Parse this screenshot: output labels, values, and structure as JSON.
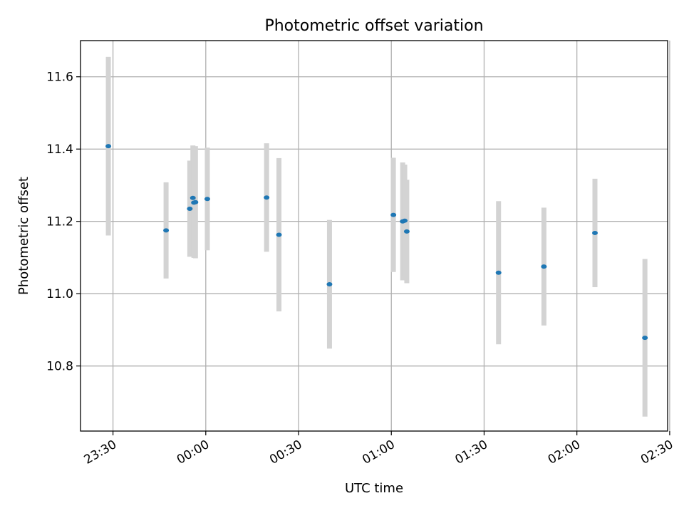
{
  "chart_data": {
    "type": "scatter",
    "title": "Photometric offset variation",
    "xlabel": "UTC time",
    "ylabel": "Photometric offset",
    "xlim": [
      "23:19:30",
      "02:29:20"
    ],
    "ylim": [
      10.62,
      11.7
    ],
    "x_ticks": [
      "23:30",
      "00:00",
      "00:30",
      "01:00",
      "01:30",
      "02:00",
      "02:30"
    ],
    "y_ticks": [
      10.8,
      11.0,
      11.2,
      11.4,
      11.6
    ],
    "y_tick_labels": [
      "10.8",
      "11.0",
      "11.2",
      "11.4",
      "11.6"
    ],
    "grid": true,
    "point_color": "#1f77b4",
    "errorbar_color": "#d3d3d3",
    "series": [
      {
        "points": [
          {
            "x": "23:28:30",
            "y": 11.408,
            "err": 0.247
          },
          {
            "x": "23:47:10",
            "y": 11.175,
            "err": 0.133
          },
          {
            "x": "23:54:50",
            "y": 11.235,
            "err": 0.133
          },
          {
            "x": "23:55:50",
            "y": 11.265,
            "err": 0.145
          },
          {
            "x": "23:56:10",
            "y": 11.252,
            "err": 0.153
          },
          {
            "x": "23:56:40",
            "y": 11.253,
            "err": 0.155
          },
          {
            "x": "00:00:30",
            "y": 11.262,
            "err": 0.142
          },
          {
            "x": "00:19:40",
            "y": 11.266,
            "err": 0.15
          },
          {
            "x": "00:23:40",
            "y": 11.163,
            "err": 0.212
          },
          {
            "x": "00:40:00",
            "y": 11.026,
            "err": 0.178
          },
          {
            "x": "01:00:40",
            "y": 11.218,
            "err": 0.158
          },
          {
            "x": "01:03:40",
            "y": 11.2,
            "err": 0.163
          },
          {
            "x": "01:04:20",
            "y": 11.202,
            "err": 0.155
          },
          {
            "x": "01:05:00",
            "y": 11.172,
            "err": 0.143
          },
          {
            "x": "01:34:40",
            "y": 11.058,
            "err": 0.198
          },
          {
            "x": "01:49:20",
            "y": 11.075,
            "err": 0.163
          },
          {
            "x": "02:05:50",
            "y": 11.168,
            "err": 0.15
          },
          {
            "x": "02:22:00",
            "y": 10.878,
            "err": 0.218
          }
        ]
      }
    ]
  }
}
